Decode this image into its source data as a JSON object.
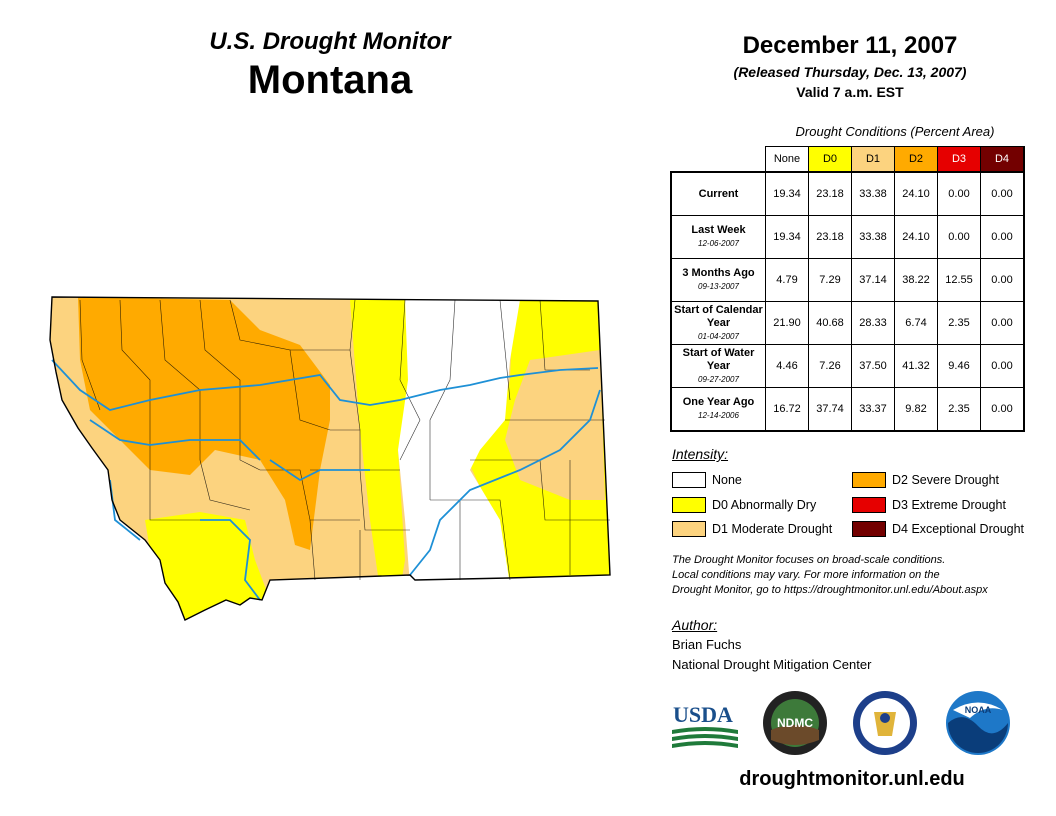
{
  "header": {
    "subtitle": "U.S. Drought Monitor",
    "state": "Montana",
    "date": "December 11, 2007",
    "released": "(Released Thursday, Dec. 13, 2007)",
    "valid": "Valid 7 a.m. EST"
  },
  "table": {
    "caption": "Drought Conditions (Percent Area)",
    "columns": [
      {
        "label": "None",
        "color": "#ffffff"
      },
      {
        "label": "D0",
        "color": "#ffff00"
      },
      {
        "label": "D1",
        "color": "#fcd37f"
      },
      {
        "label": "D2",
        "color": "#ffaa00"
      },
      {
        "label": "D3",
        "color": "#e60000"
      },
      {
        "label": "D4",
        "color": "#730000"
      }
    ],
    "rows": [
      {
        "label": "Current",
        "date": "",
        "values": [
          "19.34",
          "23.18",
          "33.38",
          "24.10",
          "0.00",
          "0.00"
        ]
      },
      {
        "label": "Last Week",
        "date": "12-06-2007",
        "values": [
          "19.34",
          "23.18",
          "33.38",
          "24.10",
          "0.00",
          "0.00"
        ]
      },
      {
        "label": "3 Months Ago",
        "date": "09-13-2007",
        "values": [
          "4.79",
          "7.29",
          "37.14",
          "38.22",
          "12.55",
          "0.00"
        ]
      },
      {
        "label": "Start of Calendar Year",
        "date": "01-04-2007",
        "values": [
          "21.90",
          "40.68",
          "28.33",
          "6.74",
          "2.35",
          "0.00"
        ]
      },
      {
        "label": "Start of Water Year",
        "date": "09-27-2007",
        "values": [
          "4.46",
          "7.26",
          "37.50",
          "41.32",
          "9.46",
          "0.00"
        ]
      },
      {
        "label": "One Year Ago",
        "date": "12-14-2006",
        "values": [
          "16.72",
          "37.74",
          "33.37",
          "9.82",
          "2.35",
          "0.00"
        ]
      }
    ]
  },
  "legend": {
    "title": "Intensity:",
    "items": [
      {
        "label": "None",
        "color": "#ffffff"
      },
      {
        "label": "D0 Abnormally Dry",
        "color": "#ffff00"
      },
      {
        "label": "D1 Moderate Drought",
        "color": "#fcd37f"
      },
      {
        "label": "D2 Severe Drought",
        "color": "#ffaa00"
      },
      {
        "label": "D3 Extreme Drought",
        "color": "#e60000"
      },
      {
        "label": "D4 Exceptional Drought",
        "color": "#730000"
      }
    ]
  },
  "note": {
    "line1": "The Drought Monitor focuses on broad-scale conditions.",
    "line2": "Local conditions may vary. For more information on the",
    "line3": "Drought Monitor, go to https://droughtmonitor.unl.edu/About.aspx"
  },
  "author": {
    "title": "Author:",
    "name": "Brian Fuchs",
    "org": "National Drought Mitigation Center"
  },
  "logos": {
    "usda": "USDA",
    "ndmc": "NDMC",
    "noaa": "NOAA"
  },
  "website": "droughtmonitor.unl.edu",
  "map_colors": {
    "none": "#ffffff",
    "d0": "#ffff00",
    "d1": "#fcd37f",
    "d2": "#ffaa00",
    "river": "#1e90d6",
    "border": "#000000"
  }
}
